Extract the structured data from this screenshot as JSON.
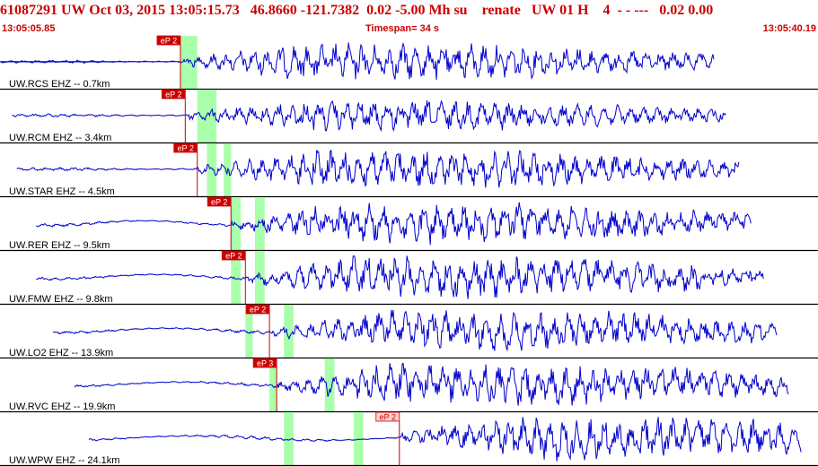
{
  "header": {
    "event_id": "61087291",
    "network": "UW",
    "datetime": "Oct 03, 2015 13:05:15.73",
    "latitude": "46.8660",
    "longitude": "-121.7382",
    "depth_mag": "0.02 -5.00 Mh su",
    "analyst": "renate",
    "version": "UW 01 H",
    "count": "4",
    "misc": "- - ---",
    "stats": "0.02 0.00"
  },
  "subheader": {
    "start_time": "13:05:05.85",
    "timespan": "Timespan=  34 s",
    "end_time": "13:05:40.19"
  },
  "traces": [
    {
      "label": "UW.RCS EHZ -- 0.7km",
      "pick": "eP 2",
      "amp": 0.7,
      "pick_t": 7.5,
      "green": [
        [
          7.5,
          8.2
        ]
      ],
      "data_start": 0.5
    },
    {
      "label": "UW.RCM EHZ -- 3.4km",
      "pick": "eP 2",
      "amp": 0.55,
      "pick_t": 7.7,
      "green": [
        [
          8.2,
          9.0
        ]
      ],
      "data_start": 0.5
    },
    {
      "label": "UW.STAR EHZ -- 4.5km",
      "pick": "eP 2",
      "amp": 0.75,
      "pick_t": 8.2,
      "green": [
        [
          8.6,
          9.0
        ],
        [
          9.3,
          9.6
        ]
      ],
      "data_start": 0.7
    },
    {
      "label": "UW.RER EHZ -- 9.5km",
      "pick": "eP 2",
      "amp": 0.75,
      "pick_t": 9.6,
      "green": [
        [
          9.6,
          10.0
        ],
        [
          10.6,
          11.0
        ]
      ],
      "data_start": 1.5
    },
    {
      "label": "UW.FMW EHZ -- 9.8km",
      "pick": "eP 2",
      "amp": 0.8,
      "pick_t": 10.2,
      "green": [
        [
          9.6,
          10.0
        ],
        [
          10.6,
          11.0
        ]
      ],
      "data_start": 1.5
    },
    {
      "label": "UW.LO2 EHZ -- 13.9km",
      "pick": "eP 2",
      "amp": 0.75,
      "pick_t": 11.2,
      "green": [
        [
          10.2,
          10.5
        ],
        [
          11.8,
          12.2
        ]
      ],
      "data_start": 2.2
    },
    {
      "label": "UW.RVC EHZ -- 19.9km",
      "pick": "eP 3",
      "amp": 0.8,
      "pick_t": 11.5,
      "green": [
        [
          11.2,
          11.5
        ],
        [
          13.5,
          13.9
        ]
      ],
      "data_start": 3.1
    },
    {
      "label": "UW.WPW EHZ -- 24.1km",
      "pick": "eP 2",
      "amp": 0.8,
      "pick_t": 16.6,
      "green": [
        [
          11.8,
          12.2
        ],
        [
          14.7,
          15.1
        ]
      ],
      "data_start": 3.7
    }
  ],
  "colors": {
    "header_text": "#cc0000",
    "waveform": "#0000cc",
    "pick_box": "#cc0000",
    "pick_text": "#ffffff",
    "pick_box_faint": "#ffd0d0",
    "green_window": "#aaffaa",
    "separator": "#000000"
  }
}
